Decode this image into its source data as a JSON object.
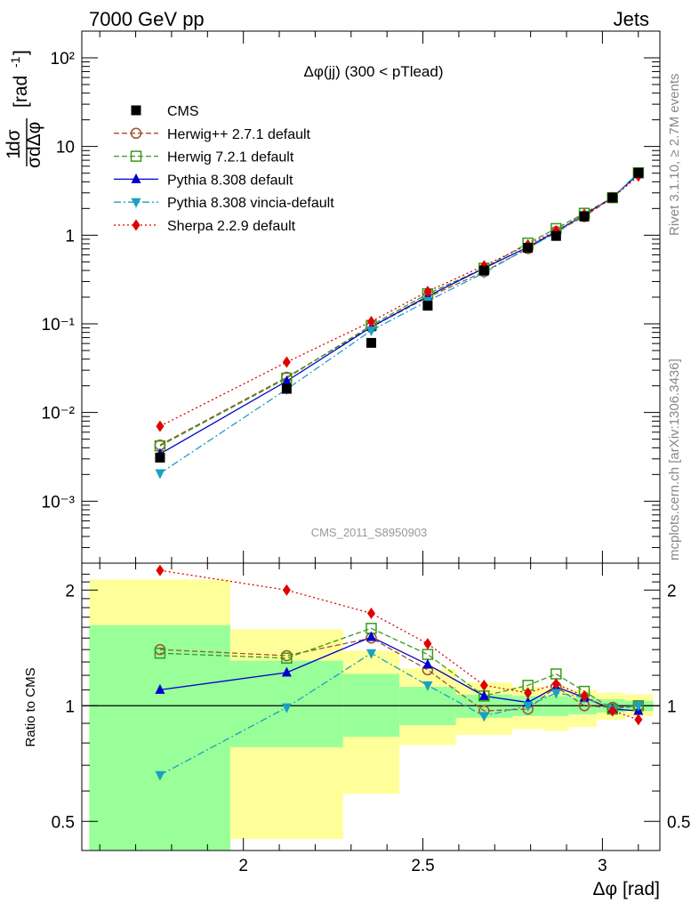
{
  "header": {
    "left": "7000 GeV pp",
    "right": "Jets"
  },
  "side_labels": {
    "rivet": "Rivet 3.1.10, ≥ 2.7M events",
    "source": "mcplots.cern.ch [arXiv:1306.3436]"
  },
  "watermark": "CMS_2011_S8950903",
  "chart_data": {
    "type": "line",
    "title": "Δφ(jj) (300 < pTlead)",
    "xlabel": "Δφ [rad]",
    "ylabel": "1/σ dσ/dΔφ [rad⁻¹]",
    "ratio_ylabel": "Ratio to CMS",
    "xlim": [
      1.55,
      3.16
    ],
    "ylim": [
      0.0002,
      200
    ],
    "yscale": "log",
    "ratio_ylim": [
      0.42,
      2.35
    ],
    "ratio_yscale": "log",
    "x_ticks": [
      2,
      2.5,
      3
    ],
    "x_tick_labels": [
      "2",
      "2.5",
      "3"
    ],
    "y_ticks": [
      0.001,
      0.01,
      0.1,
      1,
      10,
      100
    ],
    "y_tick_labels": [
      "10⁻³",
      "10⁻²",
      "10⁻¹",
      "1",
      "10",
      "10²"
    ],
    "ratio_ticks": [
      0.5,
      1,
      2
    ],
    "ratio_tick_labels": [
      "0.5",
      "1",
      "2"
    ],
    "x": [
      1.7678,
      2.1206,
      2.3562,
      2.5133,
      2.6704,
      2.7925,
      2.871,
      2.9496,
      3.0281,
      3.1002
    ],
    "bin_edges": [
      1.5708,
      1.9635,
      2.2777,
      2.4347,
      2.5918,
      2.7489,
      2.8362,
      2.9059,
      2.9845,
      3.0631,
      3.1416
    ],
    "band_outer_low": [
      0.36,
      0.45,
      0.59,
      0.79,
      0.84,
      0.87,
      0.86,
      0.88,
      0.92,
      0.94
    ],
    "band_outer_high": [
      2.13,
      1.58,
      1.39,
      1.25,
      1.15,
      1.12,
      1.12,
      1.1,
      1.08,
      1.07
    ],
    "band_inner_low": [
      0.37,
      0.78,
      0.83,
      0.89,
      0.93,
      0.94,
      0.94,
      0.95,
      0.96,
      0.97
    ],
    "band_inner_high": [
      1.62,
      1.31,
      1.21,
      1.12,
      1.07,
      1.06,
      1.06,
      1.05,
      1.04,
      1.03
    ],
    "series": [
      {
        "name": "CMS",
        "color": "#000000",
        "marker": "square",
        "line": "none",
        "values": [
          0.0031,
          0.0185,
          0.061,
          0.16,
          0.4,
          0.72,
          0.98,
          1.62,
          2.65,
          5.05
        ],
        "ratio": [
          1,
          1,
          1,
          1,
          1,
          1,
          1,
          1,
          1,
          1
        ]
      },
      {
        "name": "Herwig++ 2.7.1 default",
        "color": "#a0522d",
        "marker": "open-circle",
        "line": "dashed",
        "values": [
          0.0043,
          0.025,
          0.092,
          0.199,
          0.388,
          0.706,
          1.098,
          1.62,
          2.65,
          5.05
        ],
        "ratio": [
          1.4,
          1.35,
          1.5,
          1.24,
          0.97,
          0.98,
          1.12,
          1.0,
          0.99,
          1.0
        ]
      },
      {
        "name": "Herwig 7.2.1 default",
        "color": "#3a9a1a",
        "marker": "open-square",
        "line": "dashed",
        "values": [
          0.0042,
          0.0244,
          0.096,
          0.218,
          0.424,
          0.814,
          1.186,
          1.766,
          2.65,
          5.05
        ],
        "ratio": [
          1.37,
          1.33,
          1.59,
          1.36,
          1.06,
          1.13,
          1.21,
          1.09,
          0.98,
          1.0
        ]
      },
      {
        "name": "Pythia 8.308 default",
        "color": "#0000cc",
        "marker": "triangle",
        "line": "solid",
        "values": [
          0.00341,
          0.0226,
          0.092,
          0.205,
          0.424,
          0.734,
          1.098,
          1.702,
          2.65,
          4.898
        ],
        "ratio": [
          1.1,
          1.22,
          1.51,
          1.28,
          1.06,
          1.02,
          1.12,
          1.05,
          0.98,
          0.97
        ]
      },
      {
        "name": "Pythia 8.308 vincia-default",
        "color": "#1aa0c0",
        "marker": "triangle-down",
        "line": "dashdot",
        "values": [
          0.00206,
          0.0183,
          0.084,
          0.181,
          0.376,
          0.72,
          1.058,
          1.702,
          2.65,
          5.05
        ],
        "ratio": [
          0.66,
          0.99,
          1.37,
          1.13,
          0.94,
          1.0,
          1.08,
          1.05,
          0.98,
          1.0
        ]
      },
      {
        "name": "Sherpa 2.2.9 default",
        "color": "#e00000",
        "marker": "diamond",
        "line": "dotted",
        "values": [
          0.007,
          0.037,
          0.106,
          0.232,
          0.452,
          0.778,
          1.117,
          1.717,
          2.65,
          4.646
        ],
        "ratio": [
          2.25,
          2.0,
          1.74,
          1.45,
          1.13,
          1.08,
          1.14,
          1.06,
          0.97,
          0.92
        ]
      }
    ]
  }
}
